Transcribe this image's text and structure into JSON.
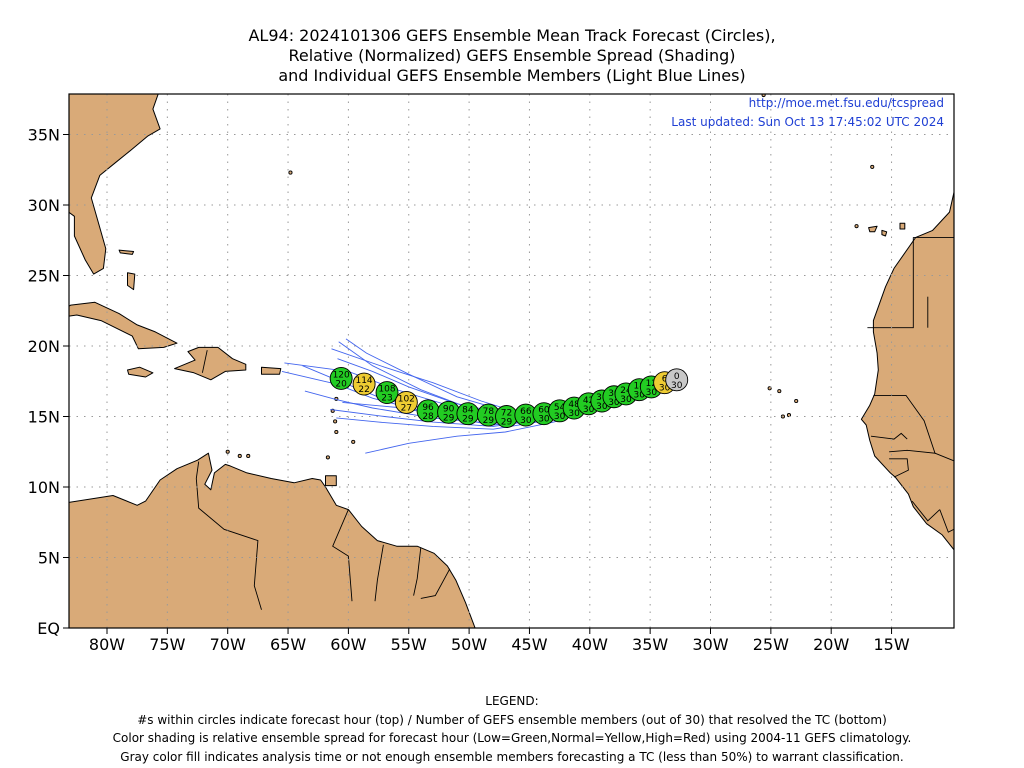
{
  "title": {
    "line1": "AL94: 2024101306 GEFS Ensemble Mean Track Forecast (Circles),",
    "line2": "Relative (Normalized) GEFS Ensemble Spread (Shading)",
    "line3": "and Individual GEFS Ensemble Members (Light Blue Lines)"
  },
  "source": {
    "url": "http://moe.met.fsu.edu/tcspread",
    "updated": "Last updated: Sun Oct 13 17:45:02 UTC 2024"
  },
  "axes": {
    "lat_labels": [
      "35N",
      "30N",
      "25N",
      "20N",
      "15N",
      "10N",
      "5N",
      "EQ"
    ],
    "lon_labels": [
      "80W",
      "75W",
      "70W",
      "65W",
      "60W",
      "55W",
      "50W",
      "45W",
      "40W",
      "35W",
      "30W",
      "25W",
      "20W",
      "15W"
    ]
  },
  "colors": {
    "land": "#d9aa78",
    "ocean": "#ffffff",
    "low_spread": "#22cc22",
    "normal_spread": "#eecc33",
    "high_spread": "#dd2222",
    "analysis_gray": "#c8c8c8",
    "member_lines": "#4466ee"
  },
  "track_points": [
    {
      "lon": -32.8,
      "lat": 17.6,
      "hour": "0",
      "members": "30",
      "spread": "gray"
    },
    {
      "lon": -33.8,
      "lat": 17.4,
      "hour": "6",
      "members": "30",
      "spread": "normal"
    },
    {
      "lon": -34.9,
      "lat": 17.1,
      "hour": "12",
      "members": "30",
      "spread": "low"
    },
    {
      "lon": -35.9,
      "lat": 16.9,
      "hour": "18",
      "members": "30",
      "spread": "low"
    },
    {
      "lon": -37.0,
      "lat": 16.6,
      "hour": "24",
      "members": "30",
      "spread": "low"
    },
    {
      "lon": -38.0,
      "lat": 16.4,
      "hour": "30",
      "members": "30",
      "spread": "low"
    },
    {
      "lon": -39.0,
      "lat": 16.1,
      "hour": "36",
      "members": "30",
      "spread": "low"
    },
    {
      "lon": -40.1,
      "lat": 15.9,
      "hour": "42",
      "members": "30",
      "spread": "low"
    },
    {
      "lon": -41.3,
      "lat": 15.6,
      "hour": "48",
      "members": "30",
      "spread": "low"
    },
    {
      "lon": -42.5,
      "lat": 15.4,
      "hour": "54",
      "members": "30",
      "spread": "low"
    },
    {
      "lon": -43.8,
      "lat": 15.2,
      "hour": "60",
      "members": "30",
      "spread": "low"
    },
    {
      "lon": -45.3,
      "lat": 15.1,
      "hour": "66",
      "members": "30",
      "spread": "low"
    },
    {
      "lon": -46.9,
      "lat": 15.0,
      "hour": "72",
      "members": "29",
      "spread": "low"
    },
    {
      "lon": -48.4,
      "lat": 15.1,
      "hour": "78",
      "members": "29",
      "spread": "low"
    },
    {
      "lon": -50.1,
      "lat": 15.2,
      "hour": "84",
      "members": "29",
      "spread": "low"
    },
    {
      "lon": -51.7,
      "lat": 15.3,
      "hour": "90",
      "members": "29",
      "spread": "low"
    },
    {
      "lon": -53.4,
      "lat": 15.4,
      "hour": "96",
      "members": "28",
      "spread": "low"
    },
    {
      "lon": -55.2,
      "lat": 16.0,
      "hour": "102",
      "members": "27",
      "spread": "normal"
    },
    {
      "lon": -56.8,
      "lat": 16.7,
      "hour": "108",
      "members": "23",
      "spread": "low"
    },
    {
      "lon": -58.7,
      "lat": 17.3,
      "hour": "114",
      "members": "22",
      "spread": "normal"
    },
    {
      "lon": -60.6,
      "lat": 17.7,
      "hour": "120",
      "members": "20",
      "spread": "low"
    }
  ],
  "member_tracks": [
    [
      [
        -32.8,
        17.5
      ],
      [
        -38,
        16.2
      ],
      [
        -43,
        15.3
      ],
      [
        -47,
        15.0
      ],
      [
        -50,
        15.6
      ],
      [
        -54,
        16.9
      ],
      [
        -58,
        18.6
      ],
      [
        -60.8,
        20.3
      ]
    ],
    [
      [
        -32.8,
        17.5
      ],
      [
        -38,
        16.4
      ],
      [
        -43,
        15.5
      ],
      [
        -47,
        15.4
      ],
      [
        -51,
        16.4
      ],
      [
        -55,
        18.0
      ],
      [
        -58.5,
        19.5
      ],
      [
        -60.2,
        20.5
      ]
    ],
    [
      [
        -32.8,
        17.5
      ],
      [
        -38,
        16.3
      ],
      [
        -43,
        15.4
      ],
      [
        -46,
        15.3
      ],
      [
        -49,
        16.1
      ],
      [
        -53,
        17.4
      ],
      [
        -57,
        18.5
      ],
      [
        -61.4,
        19.8
      ]
    ],
    [
      [
        -32.8,
        17.5
      ],
      [
        -38,
        16.2
      ],
      [
        -43,
        15.2
      ],
      [
        -47,
        14.8
      ],
      [
        -51,
        15.6
      ],
      [
        -56,
        16.9
      ],
      [
        -60,
        18.2
      ],
      [
        -65.3,
        18.8
      ]
    ],
    [
      [
        -32.8,
        17.5
      ],
      [
        -38,
        16.2
      ],
      [
        -43,
        15.2
      ],
      [
        -48,
        14.9
      ],
      [
        -52,
        15.3
      ],
      [
        -57,
        16.2
      ],
      [
        -61,
        17.6
      ],
      [
        -63.8,
        18.6
      ]
    ],
    [
      [
        -32.8,
        17.5
      ],
      [
        -38,
        16.1
      ],
      [
        -43,
        15.1
      ],
      [
        -48,
        14.7
      ],
      [
        -53,
        15.2
      ],
      [
        -58,
        16.3
      ],
      [
        -61,
        17.3
      ],
      [
        -65.5,
        18.2
      ]
    ],
    [
      [
        -32.8,
        17.5
      ],
      [
        -38,
        16.1
      ],
      [
        -43,
        15.0
      ],
      [
        -48,
        14.5
      ],
      [
        -53,
        14.9
      ],
      [
        -58,
        15.6
      ],
      [
        -61,
        16.2
      ],
      [
        -63.6,
        16.8
      ]
    ],
    [
      [
        -32.8,
        17.5
      ],
      [
        -38,
        16.0
      ],
      [
        -43,
        14.9
      ],
      [
        -48,
        14.3
      ],
      [
        -53,
        14.6
      ],
      [
        -57,
        15.0
      ],
      [
        -61.5,
        15.5
      ]
    ],
    [
      [
        -32.8,
        17.5
      ],
      [
        -38,
        15.9
      ],
      [
        -43,
        14.8
      ],
      [
        -48,
        14.1
      ],
      [
        -53,
        14.3
      ],
      [
        -57.5,
        14.6
      ],
      [
        -61,
        14.9
      ]
    ],
    [
      [
        -32.8,
        17.5
      ],
      [
        -38,
        15.9
      ],
      [
        -43,
        14.6
      ],
      [
        -47,
        13.9
      ],
      [
        -51,
        13.6
      ],
      [
        -55,
        13.1
      ],
      [
        -58.6,
        12.4
      ]
    ],
    [
      [
        -32.8,
        17.5
      ],
      [
        -38,
        16.0
      ],
      [
        -43,
        14.9
      ],
      [
        -48,
        14.4
      ],
      [
        -52,
        15.0
      ],
      [
        -55.5,
        15.6
      ],
      [
        -60.5,
        16.0
      ]
    ],
    [
      [
        -32.8,
        17.5
      ],
      [
        -38,
        16.3
      ],
      [
        -43,
        15.4
      ],
      [
        -47,
        15.2
      ],
      [
        -51,
        15.9
      ],
      [
        -55,
        17.1
      ],
      [
        -58,
        18.2
      ],
      [
        -60.9,
        19.1
      ]
    ]
  ]
}
